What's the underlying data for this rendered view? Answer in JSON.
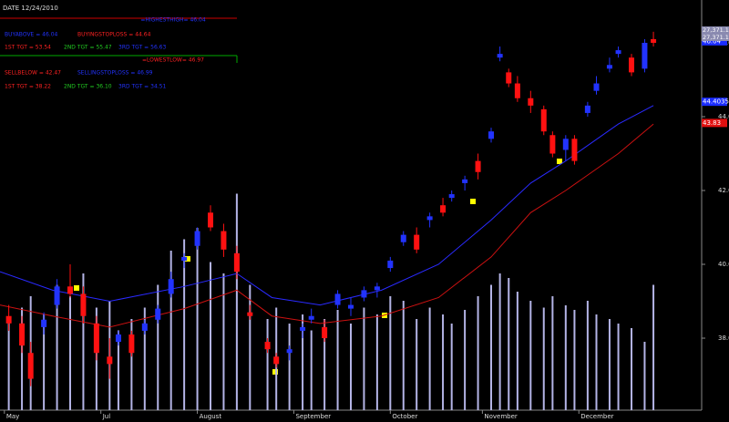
{
  "chart_data": {
    "type": "candlestick",
    "x": [
      2,
      5,
      7,
      10,
      13,
      16,
      19,
      22,
      25,
      27,
      30,
      33,
      36,
      39,
      42,
      45,
      48,
      51,
      54,
      57,
      61,
      63,
      66,
      69,
      71,
      74,
      77,
      80,
      83,
      86,
      89,
      92,
      95,
      98,
      101,
      103,
      106,
      109,
      112,
      114,
      116,
      118,
      121,
      124,
      126,
      129,
      131,
      134,
      136,
      139,
      141,
      144,
      147,
      149
    ],
    "open": [
      38.6,
      38.4,
      37.6,
      38.3,
      38.9,
      39.4,
      39.2,
      38.4,
      37.5,
      37.9,
      38.1,
      38.2,
      38.5,
      39.2,
      40.1,
      40.5,
      41.4,
      40.9,
      40.3,
      38.7,
      37.9,
      37.5,
      37.6,
      38.2,
      38.5,
      38.3,
      38.9,
      38.8,
      39.1,
      39.3,
      39.9,
      40.6,
      40.8,
      41.2,
      41.6,
      41.8,
      42.2,
      42.8,
      43.4,
      45.6,
      45.2,
      44.9,
      44.5,
      44.2,
      43.5,
      43.1,
      43.4,
      44.1,
      44.7,
      45.3,
      45.7,
      45.6,
      45.3,
      46.1
    ],
    "high": [
      38.9,
      38.6,
      37.9,
      38.7,
      39.6,
      40.0,
      39.4,
      38.6,
      38.0,
      38.2,
      38.2,
      38.5,
      38.9,
      39.8,
      40.3,
      41.0,
      41.6,
      41.1,
      40.5,
      38.9,
      38.0,
      37.6,
      37.8,
      38.4,
      38.8,
      38.5,
      39.3,
      39.1,
      39.4,
      39.5,
      40.2,
      40.9,
      41.0,
      41.4,
      41.8,
      42.0,
      42.4,
      43.0,
      43.7,
      45.9,
      45.3,
      45.1,
      44.7,
      44.3,
      43.6,
      43.5,
      43.5,
      44.4,
      45.1,
      45.6,
      45.9,
      45.7,
      46.1,
      46.3
    ],
    "low": [
      38.2,
      37.6,
      36.7,
      38.1,
      38.8,
      39.1,
      38.4,
      37.4,
      36.9,
      37.8,
      37.5,
      38.1,
      38.4,
      39.1,
      39.9,
      40.4,
      40.9,
      40.2,
      39.6,
      38.5,
      37.6,
      37.2,
      37.4,
      38.0,
      38.4,
      37.9,
      38.8,
      38.6,
      39.0,
      39.1,
      39.8,
      40.5,
      40.3,
      41.0,
      41.3,
      41.7,
      42.0,
      42.3,
      43.3,
      45.5,
      44.8,
      44.4,
      44.1,
      43.5,
      42.9,
      42.8,
      42.7,
      44.0,
      44.6,
      45.2,
      45.6,
      45.1,
      45.2,
      45.9
    ],
    "close": [
      38.4,
      37.8,
      36.9,
      38.5,
      39.4,
      39.2,
      38.6,
      37.6,
      37.3,
      38.1,
      37.6,
      38.4,
      38.8,
      39.6,
      40.2,
      40.9,
      41.0,
      40.4,
      39.8,
      38.6,
      37.7,
      37.3,
      37.7,
      38.3,
      38.6,
      38.0,
      39.2,
      38.9,
      39.3,
      39.4,
      40.1,
      40.8,
      40.4,
      41.3,
      41.4,
      41.9,
      42.3,
      42.5,
      43.6,
      45.7,
      44.9,
      44.5,
      44.3,
      43.6,
      43.0,
      43.4,
      42.8,
      44.3,
      44.9,
      45.4,
      45.8,
      45.2,
      46.0,
      46.0
    ],
    "volume": [
      40,
      45,
      50,
      42,
      55,
      50,
      60,
      45,
      48,
      35,
      40,
      45,
      55,
      70,
      75,
      80,
      65,
      60,
      95,
      55,
      40,
      45,
      38,
      42,
      35,
      40,
      44,
      38,
      45,
      42,
      50,
      48,
      40,
      45,
      42,
      38,
      44,
      50,
      55,
      60,
      58,
      52,
      48,
      45,
      50,
      46,
      44,
      48,
      42,
      40,
      38,
      36,
      30,
      55
    ],
    "volume_lim": [
      0,
      100
    ],
    "up_color": "#2233ff",
    "down_color": "#ff1111",
    "volume_color": "#b4b4e6",
    "bands": [
      {
        "color": "#2a2aff",
        "x": [
          0,
          12,
          25,
          42,
          54,
          62,
          73,
          87,
          100,
          112,
          121,
          129,
          141,
          149
        ],
        "values": [
          39.8,
          39.3,
          39.0,
          39.4,
          39.75,
          39.1,
          38.9,
          39.3,
          40.0,
          41.2,
          42.2,
          42.8,
          43.8,
          44.3
        ]
      },
      {
        "color": "#cc1111",
        "x": [
          0,
          12,
          25,
          42,
          54,
          62,
          73,
          87,
          100,
          112,
          121,
          129,
          141,
          149
        ],
        "values": [
          38.9,
          38.6,
          38.3,
          38.8,
          39.3,
          38.6,
          38.4,
          38.6,
          39.1,
          40.2,
          41.4,
          42.0,
          43.0,
          43.8
        ]
      }
    ],
    "xlim": [
      0,
      160
    ],
    "xticks": [
      {
        "value": 1,
        "label": "May"
      },
      {
        "value": 23,
        "label": "Jul"
      },
      {
        "value": 45,
        "label": "August"
      },
      {
        "value": 67,
        "label": "September"
      },
      {
        "value": 89,
        "label": "October"
      },
      {
        "value": 110,
        "label": "November"
      },
      {
        "value": 132,
        "label": "December"
      }
    ],
    "ylim": [
      36.05,
      47.16
    ],
    "yticks": [
      {
        "value": 38,
        "label": "38.0"
      },
      {
        "value": 40,
        "label": "40.0"
      },
      {
        "value": 42,
        "label": "42.0"
      },
      {
        "value": 44,
        "label": "44.0"
      },
      {
        "value": 46,
        "label": "46.0"
      }
    ],
    "price_tags": [
      {
        "value": 46.04,
        "label": "46.04",
        "color": "#1a2cff"
      },
      {
        "value": 44.4035,
        "label": "44.4035",
        "color": "#1a2cff"
      },
      {
        "value": 43.83,
        "label": "43.83",
        "color": "#e01010"
      }
    ],
    "header_tags": [
      "27,371.17",
      "27,371.17"
    ],
    "panel": {
      "date": "DATE  12/24/2010",
      "rows": [
        {
          "center": true,
          "items": [
            {
              "text": "=HIGHESTHIGH= 46.04",
              "color": "#2233ff"
            }
          ]
        },
        {
          "items": [
            {
              "text": "BUYABOVE   =   46.04",
              "color": "#2233ff"
            },
            {
              "text": "BUYINGSTOPLOSS = 44.64",
              "color": "#ff2222"
            }
          ]
        },
        {
          "items": [
            {
              "text": "1ST TGT   =   53.54",
              "color": "#ff2222"
            },
            {
              "text": "2ND TGT   =   55.47",
              "color": "#22cc22"
            },
            {
              "text": "3RD TGT   =   56.63",
              "color": "#2233ff"
            }
          ]
        },
        {
          "center": true,
          "items": [
            {
              "text": "=LOWESTLOW= 46.97",
              "color": "#ff2222"
            }
          ]
        },
        {
          "items": [
            {
              "text": "SELLBELOW   =   42.47",
              "color": "#ff2222"
            },
            {
              "text": "SELLINGSTOPLOSS = 46.99",
              "color": "#2233ff"
            }
          ]
        },
        {
          "items": [
            {
              "text": "1ST TGT   =   38.22",
              "color": "#ff2222"
            },
            {
              "text": "2ND TGT   =   36.10",
              "color": "#22cc22"
            },
            {
              "text": "3RD TGT   =   34.51",
              "color": "#2233ff"
            }
          ]
        }
      ]
    }
  }
}
